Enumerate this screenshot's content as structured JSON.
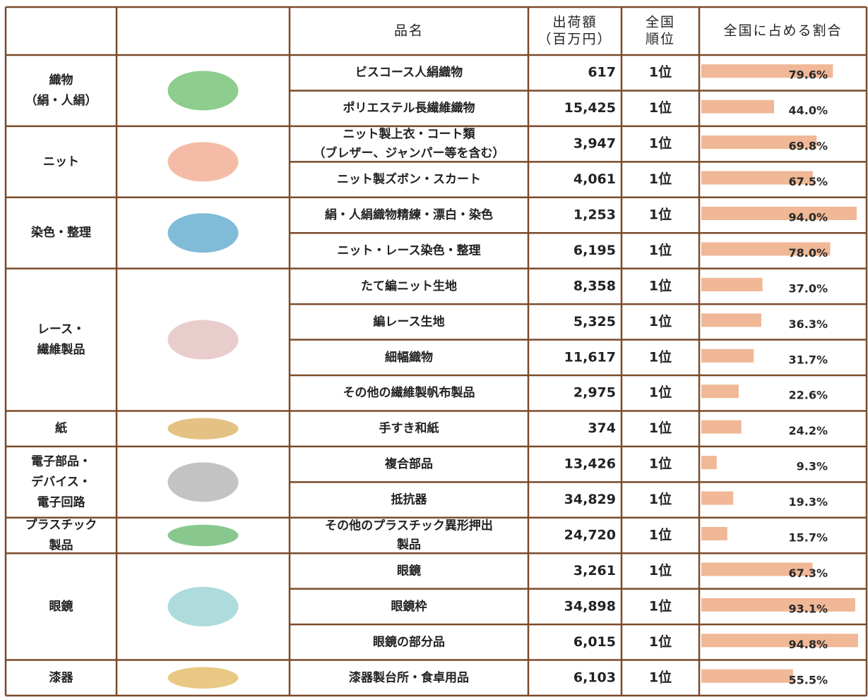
{
  "header": [
    [
      "品名"
    ],
    [
      "出荷額",
      "（百万円）"
    ],
    [
      "全国",
      "順位"
    ],
    [
      "全国に占める割合"
    ]
  ],
  "groups": [
    {
      "name": [
        "織物",
        "（絹・人絹）"
      ],
      "rows": [
        {
          "item": [
            "ビスコース人絹織物"
          ],
          "shipments": "617",
          "rank": "1位",
          "share": 79.6,
          "share_label": "79.6%"
        },
        {
          "item": [
            "ポリエステル長繊維織物"
          ],
          "shipments": "15,425",
          "rank": "1位",
          "share": 44.0,
          "share_label": "44.0%"
        }
      ]
    },
    {
      "name": [
        "ニット"
      ],
      "rows": [
        {
          "item": [
            "ニット製上衣・コート類",
            "（ブレザー、ジャンパー等を含む）"
          ],
          "shipments": "3,947",
          "rank": "1位",
          "share": 69.8,
          "share_label": "69.8%"
        },
        {
          "item": [
            "ニット製ズボン・スカート"
          ],
          "shipments": "4,061",
          "rank": "1位",
          "share": 67.5,
          "share_label": "67.5%"
        }
      ]
    },
    {
      "name": [
        "染色・整理"
      ],
      "rows": [
        {
          "item": [
            "絹・人絹織物精練・漂白・染色"
          ],
          "shipments": "1,253",
          "rank": "1位",
          "share": 94.0,
          "share_label": "94.0%"
        },
        {
          "item": [
            "ニット・レース染色・整理"
          ],
          "shipments": "6,195",
          "rank": "1位",
          "share": 78.0,
          "share_label": "78.0%"
        }
      ]
    },
    {
      "name": [
        "レース・",
        "繊維製品"
      ],
      "rows": [
        {
          "item": [
            "たて編ニット生地"
          ],
          "shipments": "8,358",
          "rank": "1位",
          "share": 37.0,
          "share_label": "37.0%"
        },
        {
          "item": [
            "編レース生地"
          ],
          "shipments": "5,325",
          "rank": "1位",
          "share": 36.3,
          "share_label": "36.3%"
        },
        {
          "item": [
            "細幅織物"
          ],
          "shipments": "11,617",
          "rank": "1位",
          "share": 31.7,
          "share_label": "31.7%"
        },
        {
          "item": [
            "その他の繊維製帆布製品"
          ],
          "shipments": "2,975",
          "rank": "1位",
          "share": 22.6,
          "share_label": "22.6%"
        }
      ]
    },
    {
      "name": [
        "紙"
      ],
      "rows": [
        {
          "item": [
            "手すき和紙"
          ],
          "shipments": "374",
          "rank": "1位",
          "share": 24.2,
          "share_label": "24.2%"
        }
      ]
    },
    {
      "name": [
        "電子部品・",
        "デバイス・",
        "電子回路"
      ],
      "rows": [
        {
          "item": [
            "複合部品"
          ],
          "shipments": "13,426",
          "rank": "1位",
          "share": 9.3,
          "share_label": "9.3%"
        },
        {
          "item": [
            "抵抗器"
          ],
          "shipments": "34,829",
          "rank": "1位",
          "share": 19.3,
          "share_label": "19.3%"
        }
      ]
    },
    {
      "name": [
        "プラスチック",
        "製品"
      ],
      "rows": [
        {
          "item": [
            "その他のプラスチック異形押出",
            "製品"
          ],
          "shipments": "24,720",
          "rank": "1位",
          "share": 15.7,
          "share_label": "15.7%"
        }
      ]
    },
    {
      "name": [
        "眼鏡"
      ],
      "rows": [
        {
          "item": [
            "眼鏡"
          ],
          "shipments": "3,261",
          "rank": "1位",
          "share": 67.3,
          "share_label": "67.3%"
        },
        {
          "item": [
            "眼鏡枠"
          ],
          "shipments": "34,898",
          "rank": "1位",
          "share": 93.1,
          "share_label": "93.1%"
        },
        {
          "item": [
            "眼鏡の部分品"
          ],
          "shipments": "6,015",
          "rank": "1位",
          "share": 94.8,
          "share_label": "94.8%"
        }
      ]
    },
    {
      "name": [
        "漆器"
      ],
      "rows": [
        {
          "item": [
            "漆器製台所・食卓用品"
          ],
          "shipments": "6,103",
          "rank": "1位",
          "share": 55.5,
          "share_label": "55.5%"
        }
      ]
    }
  ]
}
